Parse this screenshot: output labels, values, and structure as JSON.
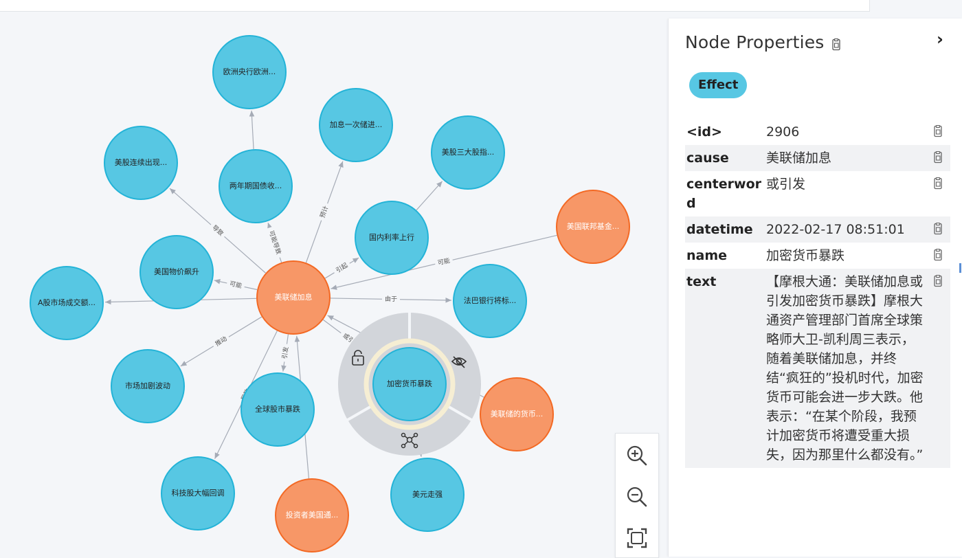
{
  "graph": {
    "nodes": [
      {
        "id": "center",
        "label": "美联储加息",
        "type": "orange"
      },
      {
        "id": "n1",
        "label": "欧洲央行欧洲...",
        "type": "blue"
      },
      {
        "id": "n2",
        "label": "加息一次储进...",
        "type": "blue"
      },
      {
        "id": "n3",
        "label": "美股三大股指...",
        "type": "blue"
      },
      {
        "id": "n4",
        "label": "美股连续出现...",
        "type": "blue"
      },
      {
        "id": "n5",
        "label": "两年期国债收...",
        "type": "blue"
      },
      {
        "id": "n6",
        "label": "国内利率上行",
        "type": "blue"
      },
      {
        "id": "n7",
        "label": "美国联邦基金...",
        "type": "orange"
      },
      {
        "id": "n8",
        "label": "美国物价飙升",
        "type": "blue"
      },
      {
        "id": "n9",
        "label": "A股市场成交额...",
        "type": "blue"
      },
      {
        "id": "n10",
        "label": "法巴银行将标...",
        "type": "blue"
      },
      {
        "id": "n11",
        "label": "市场加剧波动",
        "type": "blue"
      },
      {
        "id": "n12",
        "label": "全球股市暴跌",
        "type": "blue"
      },
      {
        "id": "sel",
        "label": "加密货币暴跌",
        "type": "blue",
        "selected": true
      },
      {
        "id": "n14",
        "label": "美联储的货币...",
        "type": "orange"
      },
      {
        "id": "n15",
        "label": "科技股大幅回调",
        "type": "blue"
      },
      {
        "id": "n16",
        "label": "投资者美国通...",
        "type": "orange"
      },
      {
        "id": "n17",
        "label": "美元走强",
        "type": "blue"
      }
    ],
    "edges": [
      {
        "from": "n5",
        "to": "n1",
        "label": ""
      },
      {
        "from": "center",
        "to": "n4",
        "label": "导致"
      },
      {
        "from": "center",
        "to": "n5",
        "label": "可能导致"
      },
      {
        "from": "center",
        "to": "n2",
        "label": "预计"
      },
      {
        "from": "center",
        "to": "n6",
        "label": "引起"
      },
      {
        "from": "n6",
        "to": "n3",
        "label": ""
      },
      {
        "from": "n7",
        "to": "center",
        "label": "可能"
      },
      {
        "from": "center",
        "to": "n8",
        "label": "可能"
      },
      {
        "from": "center",
        "to": "n9",
        "label": ""
      },
      {
        "from": "center",
        "to": "n10",
        "label": "由于"
      },
      {
        "from": "center",
        "to": "n11",
        "label": "推动"
      },
      {
        "from": "center",
        "to": "n12",
        "label": "引发"
      },
      {
        "from": "center",
        "to": "n15",
        "label": "导致"
      },
      {
        "from": "n16",
        "to": "center",
        "label": ""
      },
      {
        "from": "center",
        "to": "sel",
        "label": "或引发"
      },
      {
        "from": "n14",
        "to": "center",
        "label": ""
      },
      {
        "from": "sel",
        "to": "n17",
        "label": ""
      }
    ],
    "colors": {
      "blue": "#57c7e3",
      "blue_stroke": "#23b3d7",
      "orange": "#f79767",
      "orange_stroke": "#f36924",
      "edge": "#a5abb6"
    },
    "radial_menu_icons": [
      "unlock-icon",
      "hide-eye-icon",
      "expand-network-icon"
    ]
  },
  "panel": {
    "title": "Node Properties",
    "label_badge": "Effect",
    "properties": [
      {
        "key": "<id>",
        "value": "2906"
      },
      {
        "key": "cause",
        "value": "美联储加息"
      },
      {
        "key": "centerword",
        "value": "或引发"
      },
      {
        "key": "datetime",
        "value": "2022-02-17 08:51:01"
      },
      {
        "key": "name",
        "value": "加密货币暴跌"
      },
      {
        "key": "text",
        "value": "【摩根大通：美联储加息或引发加密货币暴跌】摩根大通资产管理部门首席全球策略师大卫-凯利周三表示，随着美联储加息，并终结“疯狂的”投机时代，加密货币可能会进一步大跌。他表示：“在某个阶段，我预计加密货币将遭受重大损失，因为那里什么都没有。”"
      }
    ]
  },
  "zoom_controls": [
    "zoom-in-icon",
    "zoom-out-icon",
    "fit-screen-icon"
  ]
}
